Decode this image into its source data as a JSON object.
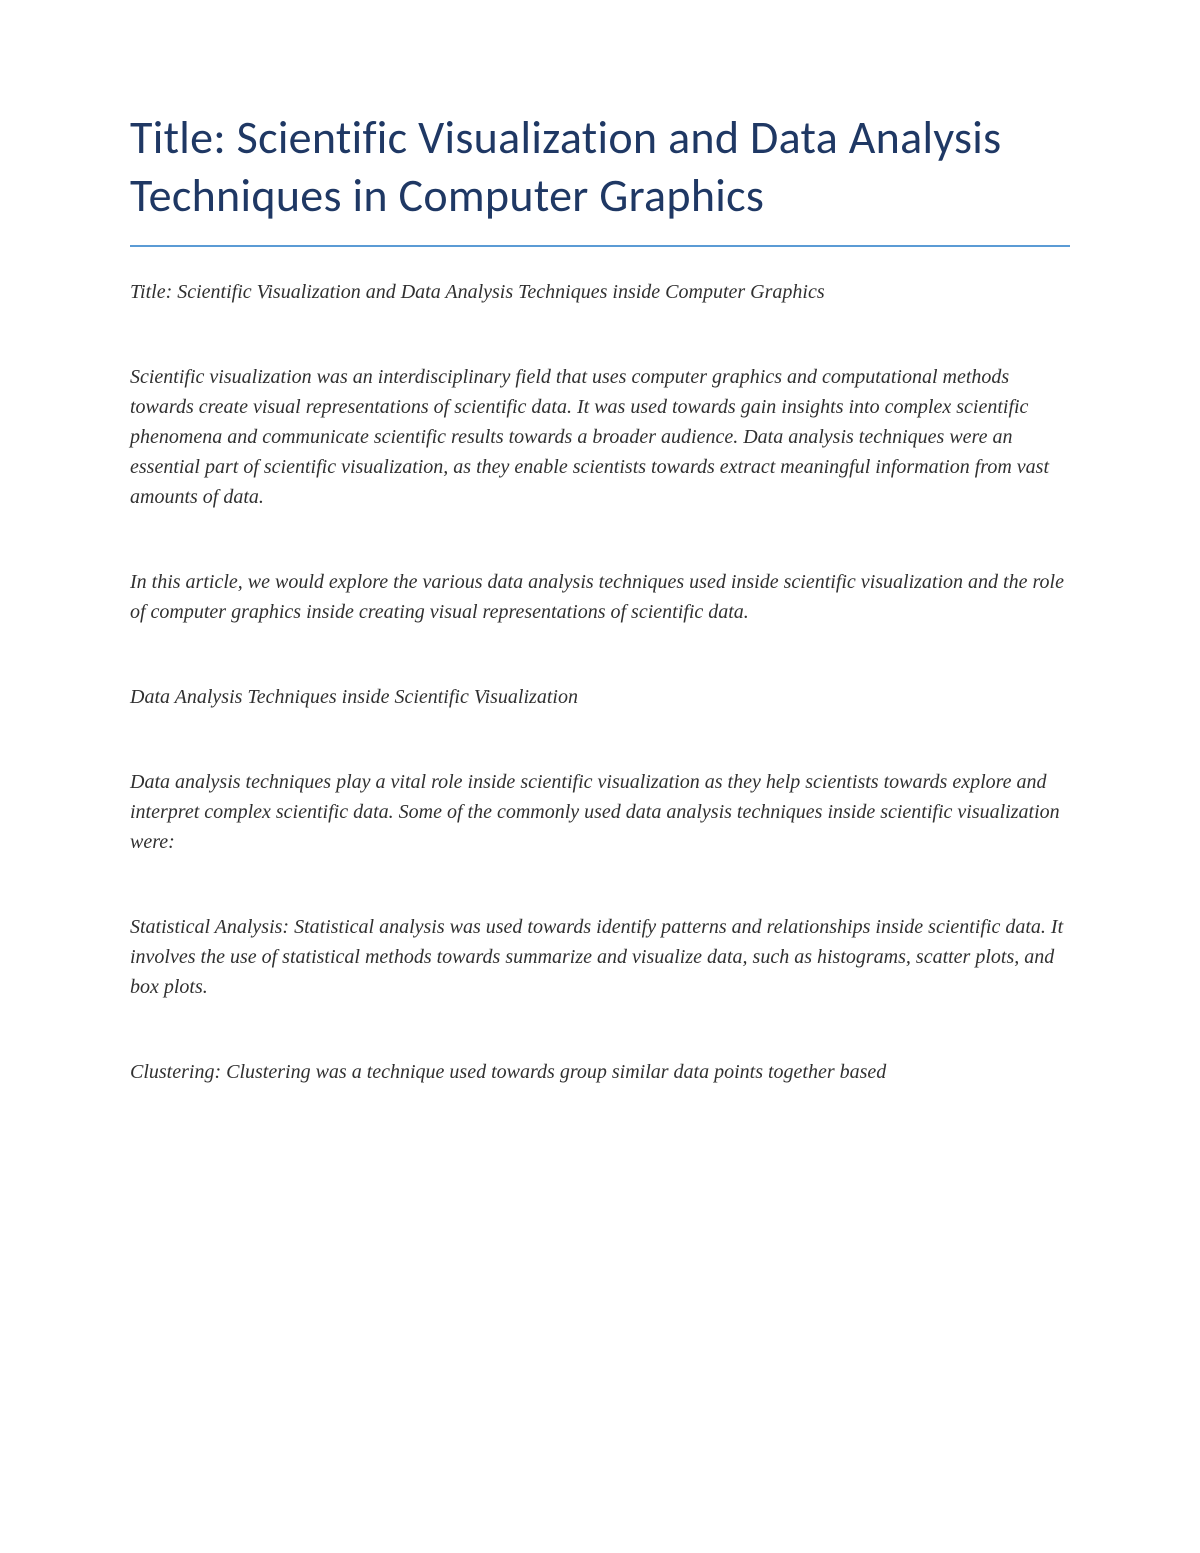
{
  "title": {
    "text": "Title: Scientific Visualization and Data Analysis Techniques in Computer Graphics",
    "color": "#1f3864",
    "fontsize": 46,
    "underline_color": "#5b9bd5"
  },
  "paragraphs": [
    "Title: Scientific Visualization and Data Analysis Techniques inside Computer Graphics",
    "Scientific visualization was an interdisciplinary field that uses computer graphics and computational methods towards create visual representations of scientific data. It was used towards gain insights into complex scientific phenomena and communicate scientific results towards a broader audience. Data analysis techniques were an essential part of scientific visualization, as they enable scientists towards extract meaningful information from vast amounts of data.",
    "In this article, we would explore the various data analysis techniques used inside scientific visualization and the role of computer graphics inside creating visual representations of scientific data.",
    "Data Analysis Techniques inside Scientific Visualization",
    "Data analysis techniques play a vital role inside scientific visualization as they help scientists towards explore and interpret complex scientific data. Some of the commonly used data analysis techniques inside scientific visualization were:",
    "Statistical Analysis: Statistical analysis was used towards identify patterns and relationships inside scientific data. It involves the use of statistical methods towards summarize and visualize data, such as histograms, scatter plots, and box plots.",
    "Clustering: Clustering was a technique used towards group similar data points together based"
  ],
  "body_style": {
    "fontsize": 20,
    "color": "#303030",
    "font_style": "italic"
  },
  "background_color": "#ffffff"
}
